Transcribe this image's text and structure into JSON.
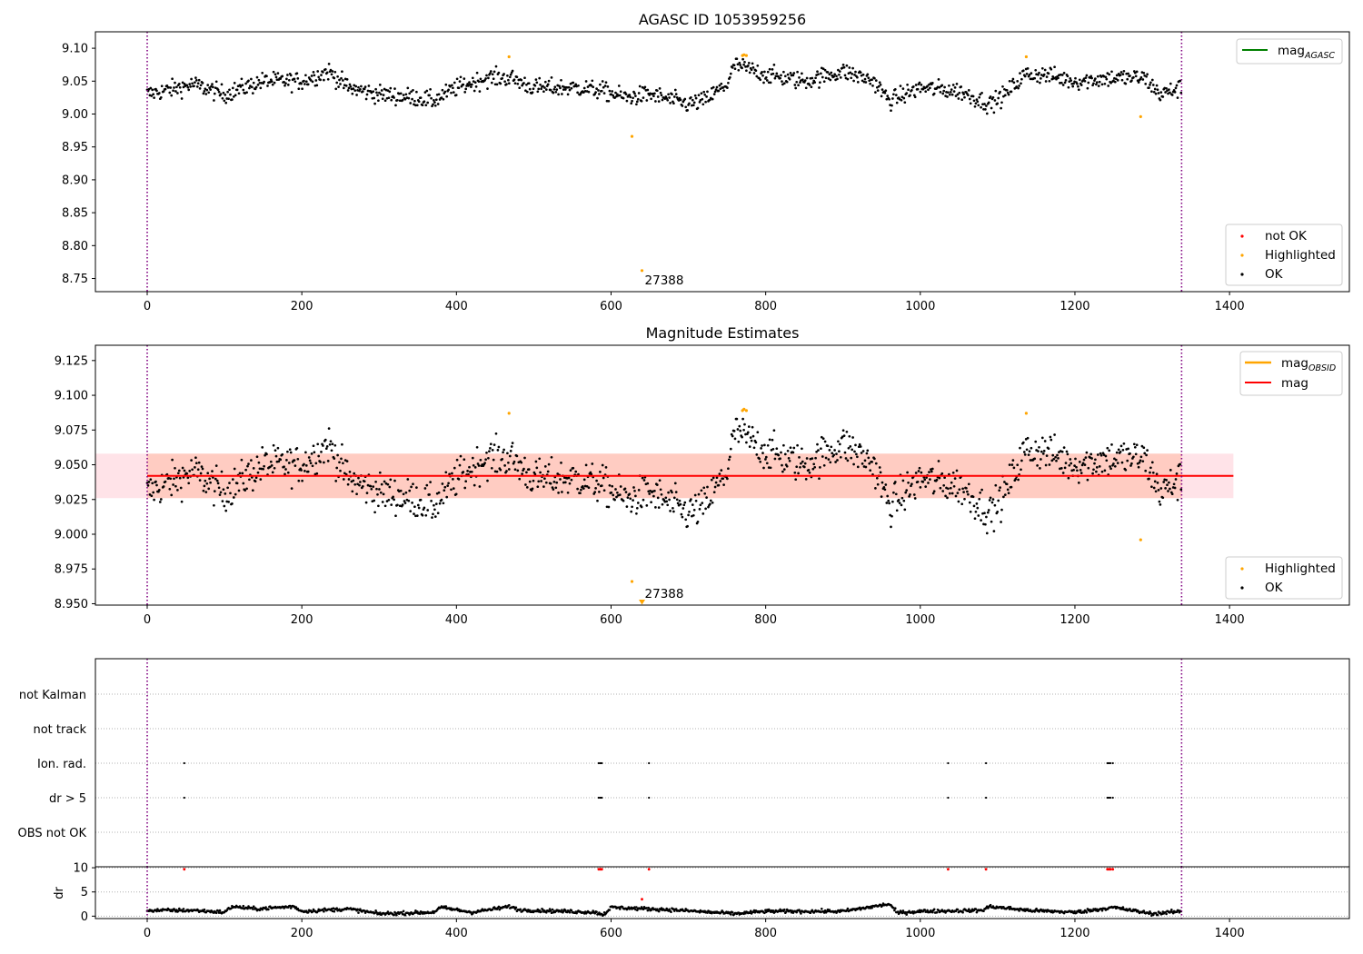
{
  "chart_data": [
    {
      "type": "scatter",
      "title": "AGASC ID 1053959256",
      "xlim": [
        -67,
        1555
      ],
      "ylim": [
        8.73,
        9.125
      ],
      "xticks": [
        0,
        200,
        400,
        600,
        800,
        1000,
        1200,
        1400
      ],
      "yticks": [
        8.75,
        8.8,
        8.85,
        8.9,
        8.95,
        9.0,
        9.05,
        9.1
      ],
      "ytick_labels": [
        "8.75",
        "8.80",
        "8.85",
        "8.90",
        "8.95",
        "9.00",
        "9.05",
        "9.10"
      ],
      "vlines": [
        0,
        1338
      ],
      "series": [
        {
          "name": "not OK",
          "color": "#ff0000",
          "points": []
        },
        {
          "name": "Highlighted",
          "color": "#ffa500",
          "points": [
            [
              468,
              9.087
            ],
            [
              627,
              8.966
            ],
            [
              640,
              8.762
            ],
            [
              770,
              9.089
            ],
            [
              772,
              9.09
            ],
            [
              775,
              9.089
            ],
            [
              1137,
              9.087
            ],
            [
              1285,
              8.996
            ]
          ]
        },
        {
          "name": "OK",
          "color": "#000000",
          "points": "generated"
        }
      ],
      "ok_profile": [
        [
          0,
          9.03
        ],
        [
          60,
          9.045
        ],
        [
          100,
          9.03
        ],
        [
          150,
          9.05
        ],
        [
          200,
          9.05
        ],
        [
          235,
          9.065
        ],
        [
          260,
          9.04
        ],
        [
          300,
          9.03
        ],
        [
          350,
          9.025
        ],
        [
          370,
          9.02
        ],
        [
          400,
          9.04
        ],
        [
          440,
          9.055
        ],
        [
          470,
          9.055
        ],
        [
          500,
          9.04
        ],
        [
          560,
          9.04
        ],
        [
          590,
          9.035
        ],
        [
          620,
          9.025
        ],
        [
          650,
          9.03
        ],
        [
          700,
          9.015
        ],
        [
          720,
          9.02
        ],
        [
          750,
          9.045
        ],
        [
          760,
          9.075
        ],
        [
          800,
          9.06
        ],
        [
          850,
          9.05
        ],
        [
          900,
          9.065
        ],
        [
          940,
          9.05
        ],
        [
          960,
          9.02
        ],
        [
          1000,
          9.04
        ],
        [
          1050,
          9.035
        ],
        [
          1090,
          9.015
        ],
        [
          1110,
          9.03
        ],
        [
          1135,
          9.06
        ],
        [
          1160,
          9.06
        ],
        [
          1200,
          9.05
        ],
        [
          1250,
          9.055
        ],
        [
          1290,
          9.055
        ],
        [
          1310,
          9.03
        ],
        [
          1338,
          9.04
        ]
      ],
      "ok_noise": 0.009,
      "annotation": {
        "text": "27388",
        "x": 640,
        "y": 8.762
      },
      "legends": [
        {
          "placement": "top-right",
          "entries": [
            {
              "label": "mag",
              "sub": "AGASC",
              "color": "#008000",
              "kind": "line"
            }
          ]
        },
        {
          "placement": "bottom-right",
          "entries": [
            {
              "label": "not OK",
              "color": "#ff0000",
              "kind": "dot"
            },
            {
              "label": "Highlighted",
              "color": "#ffa500",
              "kind": "dot"
            },
            {
              "label": "OK",
              "color": "#000000",
              "kind": "dot"
            }
          ]
        }
      ]
    },
    {
      "type": "scatter",
      "title": "Magnitude Estimates",
      "xlim": [
        -67,
        1555
      ],
      "ylim": [
        8.949,
        9.136
      ],
      "xticks": [
        0,
        200,
        400,
        600,
        800,
        1000,
        1200,
        1400
      ],
      "yticks": [
        8.95,
        8.975,
        9.0,
        9.025,
        9.05,
        9.075,
        9.1,
        9.125
      ],
      "ytick_labels": [
        "8.950",
        "8.975",
        "9.000",
        "9.025",
        "9.050",
        "9.075",
        "9.100",
        "9.125"
      ],
      "vlines": [
        0,
        1338
      ],
      "mag_line": 9.042,
      "mag_band": [
        9.026,
        9.058
      ],
      "mag_band_x": [
        -67,
        1405
      ],
      "series": [
        {
          "name": "Highlighted",
          "color": "#ffa500",
          "points": [
            [
              468,
              9.087
            ],
            [
              627,
              8.966
            ],
            [
              770,
              9.089
            ],
            [
              772,
              9.09
            ],
            [
              775,
              9.089
            ],
            [
              1137,
              9.087
            ],
            [
              1285,
              8.996
            ]
          ]
        },
        {
          "name": "OK",
          "color": "#000000",
          "points": "generated"
        }
      ],
      "offscale_marker": {
        "x": 640,
        "y": 8.951
      },
      "annotation": {
        "text": "27388",
        "x": 640,
        "y": 8.957
      },
      "legends": [
        {
          "placement": "top-right",
          "entries": [
            {
              "label": "mag",
              "sub": "OBSID",
              "color": "#ffa500",
              "kind": "line"
            },
            {
              "label": "mag",
              "color": "#ff0000",
              "kind": "line"
            }
          ]
        },
        {
          "placement": "bottom-right",
          "entries": [
            {
              "label": "Highlighted",
              "color": "#ffa500",
              "kind": "dot"
            },
            {
              "label": "OK",
              "color": "#000000",
              "kind": "dot"
            }
          ]
        }
      ]
    },
    {
      "type": "scatter",
      "title": "",
      "xlim": [
        -67,
        1555
      ],
      "categories": [
        "not Kalman",
        "not track",
        "Ion. rad.",
        "dr > 5",
        "OBS not OK"
      ],
      "flag_points": {
        "Ion. rad.": [
          48,
          584,
          586,
          588,
          649,
          1036,
          1085,
          1242,
          1244,
          1246,
          1249
        ],
        "dr > 5": [
          48,
          584,
          586,
          588,
          649,
          1036,
          1085,
          1242,
          1244,
          1246,
          1249
        ]
      },
      "vlines": [
        0,
        1338
      ]
    },
    {
      "type": "scatter",
      "title": "",
      "xlim": [
        -67,
        1555
      ],
      "ylim": [
        -0.5,
        10.2
      ],
      "yticks": [
        0,
        5,
        10
      ],
      "ytick_labels": [
        "0",
        "5",
        "10"
      ],
      "ylabel": "dr",
      "xticks": [
        0,
        200,
        400,
        600,
        800,
        1000,
        1200,
        1400
      ],
      "vlines": [
        0,
        1338
      ],
      "red_points": [
        [
          48,
          9.7
        ],
        [
          584,
          9.7
        ],
        [
          586,
          9.7
        ],
        [
          588,
          9.7
        ],
        [
          649,
          9.7
        ],
        [
          1036,
          9.7
        ],
        [
          1085,
          9.7
        ],
        [
          1242,
          9.7
        ],
        [
          1244,
          9.7
        ],
        [
          1246,
          9.7
        ],
        [
          1249,
          9.7
        ],
        [
          640,
          3.5
        ]
      ],
      "dr_profile": [
        [
          0,
          1.2
        ],
        [
          60,
          1.2
        ],
        [
          100,
          0.8
        ],
        [
          110,
          2.0
        ],
        [
          140,
          1.5
        ],
        [
          190,
          2.0
        ],
        [
          200,
          1.0
        ],
        [
          260,
          1.5
        ],
        [
          300,
          0.5
        ],
        [
          370,
          0.8
        ],
        [
          380,
          1.8
        ],
        [
          420,
          0.8
        ],
        [
          470,
          2.0
        ],
        [
          480,
          1.3
        ],
        [
          580,
          0.8
        ],
        [
          590,
          0.3
        ],
        [
          600,
          1.8
        ],
        [
          680,
          1.3
        ],
        [
          760,
          0.5
        ],
        [
          800,
          1.0
        ],
        [
          900,
          1.0
        ],
        [
          960,
          2.5
        ],
        [
          970,
          0.7
        ],
        [
          1000,
          1.0
        ],
        [
          1080,
          1.2
        ],
        [
          1090,
          2.0
        ],
        [
          1140,
          1.2
        ],
        [
          1200,
          0.8
        ],
        [
          1250,
          1.8
        ],
        [
          1300,
          0.5
        ],
        [
          1338,
          1.0
        ]
      ]
    }
  ]
}
